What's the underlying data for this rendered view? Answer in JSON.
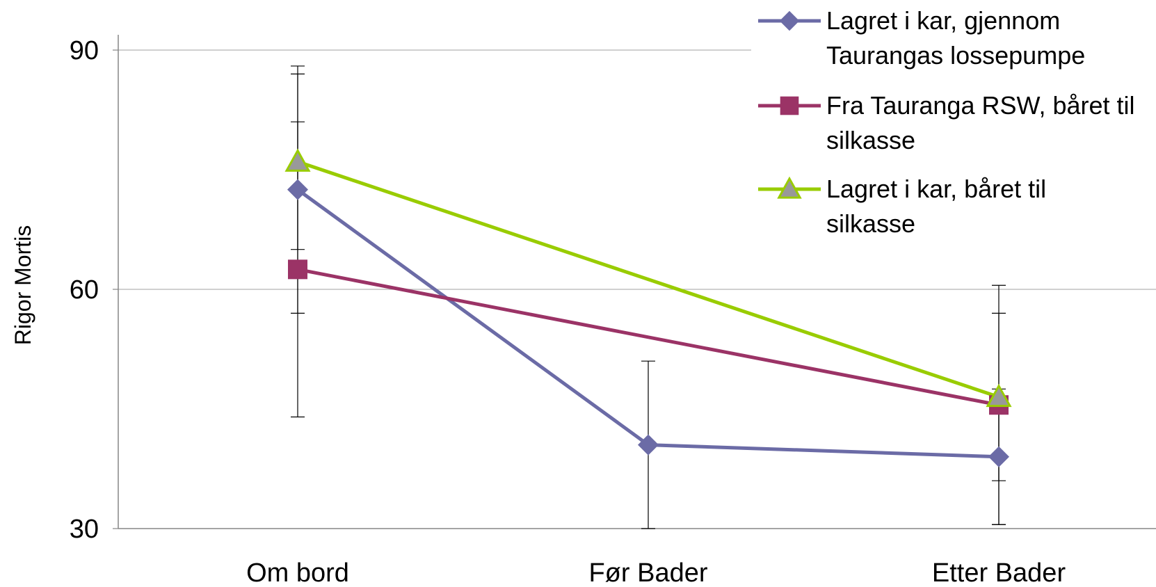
{
  "chart_data": {
    "type": "line",
    "title": "",
    "xlabel": "",
    "ylabel": "Rigor Mortis",
    "categories": [
      "Om bord",
      "Før Bader",
      "Etter Bader"
    ],
    "ylim": [
      30,
      90
    ],
    "yticks": [
      "90",
      "60",
      "30"
    ],
    "grid": true,
    "legend_position": "top-right",
    "series": [
      {
        "name": "Lagret i kar, gjennom Taurangas lossepumpe",
        "legend_lines": [
          "Lagret i kar, gjennom",
          "Taurangas lossepumpe"
        ],
        "marker": "diamond",
        "color": "#6b6ba6",
        "values": [
          72.5,
          40.5,
          39.0
        ],
        "error": [
          15.5,
          10.5,
          8.5
        ]
      },
      {
        "name": "Fra Tauranga RSW, båret til silkasse",
        "legend_lines": [
          "Fra Tauranga RSW, båret til",
          "silkasse"
        ],
        "marker": "square",
        "color": "#9b3366",
        "values": [
          62.5,
          null,
          45.5
        ],
        "error": [
          18.5,
          null,
          15.0
        ]
      },
      {
        "name": "Lagret i kar, båret til silkasse",
        "legend_lines": [
          "Lagret i kar, båret til",
          "silkasse"
        ],
        "marker": "triangle",
        "color": "#99cc00",
        "values": [
          76.0,
          null,
          46.5
        ],
        "error": [
          11.0,
          null,
          10.5
        ]
      }
    ]
  }
}
